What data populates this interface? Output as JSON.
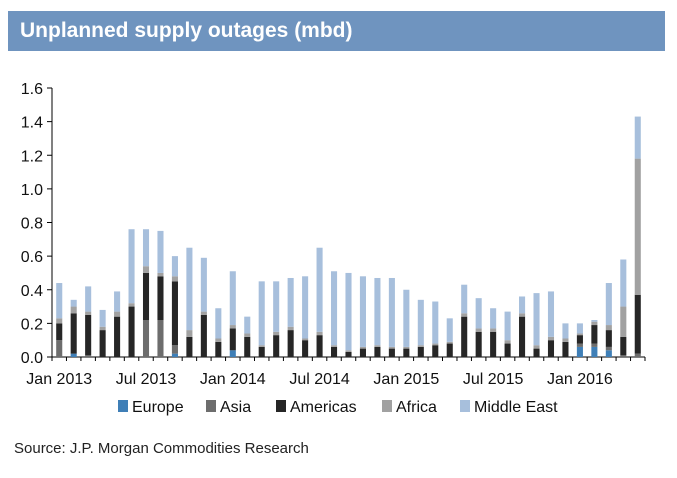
{
  "header": {
    "title": "Unplanned supply outages (mbd)"
  },
  "footer": {
    "source": "Source: J.P. Morgan Commodities Research"
  },
  "colors": {
    "Europe": "#3f7fb7",
    "Asia": "#6d6d6d",
    "Americas": "#262626",
    "Africa": "#a1a1a1",
    "Middle East": "#a7bfdc"
  },
  "chart_data": {
    "type": "bar",
    "stacked": true,
    "title": "Unplanned supply outages (mbd)",
    "xlabel": "",
    "ylabel": "",
    "ylim": [
      0,
      1.6
    ],
    "yticks": [
      0.0,
      0.2,
      0.4,
      0.6,
      0.8,
      1.0,
      1.2,
      1.4,
      1.6
    ],
    "ytick_labels": [
      "0.0",
      "0.2",
      "0.4",
      "0.6",
      "0.8",
      "1.0",
      "1.2",
      "1.4",
      "1.6"
    ],
    "xtick_labels": [
      "Jan 2013",
      "Jul 2013",
      "Jan 2014",
      "Jul 2014",
      "Jan 2015",
      "Jul 2015",
      "Jan 2016"
    ],
    "xtick_index": [
      0,
      6,
      12,
      18,
      24,
      30,
      36
    ],
    "categories": [
      "Jan 2013",
      "Feb 2013",
      "Mar 2013",
      "Apr 2013",
      "May 2013",
      "Jun 2013",
      "Jul 2013",
      "Aug 2013",
      "Sep 2013",
      "Oct 2013",
      "Nov 2013",
      "Dec 2013",
      "Jan 2014",
      "Feb 2014",
      "Mar 2014",
      "Apr 2014",
      "May 2014",
      "Jun 2014",
      "Jul 2014",
      "Aug 2014",
      "Sep 2014",
      "Oct 2014",
      "Nov 2014",
      "Dec 2014",
      "Jan 2015",
      "Feb 2015",
      "Mar 2015",
      "Apr 2015",
      "May 2015",
      "Jun 2015",
      "Jul 2015",
      "Aug 2015",
      "Sep 2015",
      "Oct 2015",
      "Nov 2015",
      "Dec 2015",
      "Jan 2016",
      "Feb 2016",
      "Mar 2016",
      "Apr 2016",
      "May 2016"
    ],
    "legend": [
      "Europe",
      "Asia",
      "Americas",
      "Africa",
      "Middle East"
    ],
    "legend_position": "bottom",
    "grid": false,
    "series": [
      {
        "name": "Europe",
        "values": [
          0.0,
          0.02,
          0.0,
          0.0,
          0.0,
          0.0,
          0.0,
          0.0,
          0.02,
          0.0,
          0.0,
          0.0,
          0.04,
          0.0,
          0.0,
          0.0,
          0.0,
          0.0,
          0.0,
          0.0,
          0.0,
          0.0,
          0.0,
          0.0,
          0.0,
          0.0,
          0.0,
          0.0,
          0.0,
          0.0,
          0.0,
          0.0,
          0.0,
          0.0,
          0.0,
          0.0,
          0.06,
          0.06,
          0.04,
          0.0,
          0.0
        ]
      },
      {
        "name": "Asia",
        "values": [
          0.1,
          0.0,
          0.01,
          0.0,
          0.0,
          0.0,
          0.22,
          0.22,
          0.05,
          0.0,
          0.0,
          0.0,
          0.0,
          0.0,
          0.0,
          0.0,
          0.0,
          0.0,
          0.0,
          0.0,
          0.0,
          0.0,
          0.0,
          0.0,
          0.0,
          0.0,
          0.0,
          0.0,
          0.0,
          0.0,
          0.0,
          0.0,
          0.0,
          0.0,
          0.0,
          0.0,
          0.02,
          0.02,
          0.02,
          0.01,
          0.02
        ]
      },
      {
        "name": "Americas",
        "values": [
          0.1,
          0.24,
          0.24,
          0.16,
          0.24,
          0.3,
          0.28,
          0.26,
          0.38,
          0.12,
          0.25,
          0.09,
          0.13,
          0.12,
          0.06,
          0.13,
          0.16,
          0.1,
          0.13,
          0.06,
          0.03,
          0.05,
          0.06,
          0.05,
          0.05,
          0.06,
          0.07,
          0.08,
          0.24,
          0.15,
          0.15,
          0.08,
          0.24,
          0.05,
          0.1,
          0.09,
          0.05,
          0.11,
          0.1,
          0.11,
          0.35
        ]
      },
      {
        "name": "Africa",
        "values": [
          0.03,
          0.04,
          0.02,
          0.02,
          0.03,
          0.02,
          0.04,
          0.02,
          0.03,
          0.04,
          0.02,
          0.02,
          0.02,
          0.02,
          0.01,
          0.02,
          0.02,
          0.01,
          0.02,
          0.01,
          0.01,
          0.01,
          0.01,
          0.01,
          0.01,
          0.01,
          0.01,
          0.01,
          0.02,
          0.02,
          0.02,
          0.02,
          0.02,
          0.02,
          0.02,
          0.02,
          0.01,
          0.02,
          0.03,
          0.18,
          0.81
        ]
      },
      {
        "name": "Middle East",
        "values": [
          0.21,
          0.04,
          0.15,
          0.1,
          0.12,
          0.44,
          0.22,
          0.25,
          0.12,
          0.49,
          0.32,
          0.18,
          0.32,
          0.1,
          0.38,
          0.3,
          0.29,
          0.37,
          0.5,
          0.44,
          0.46,
          0.42,
          0.4,
          0.41,
          0.34,
          0.27,
          0.25,
          0.14,
          0.17,
          0.18,
          0.12,
          0.17,
          0.1,
          0.31,
          0.27,
          0.09,
          0.06,
          0.01,
          0.25,
          0.28,
          0.25
        ]
      }
    ]
  }
}
